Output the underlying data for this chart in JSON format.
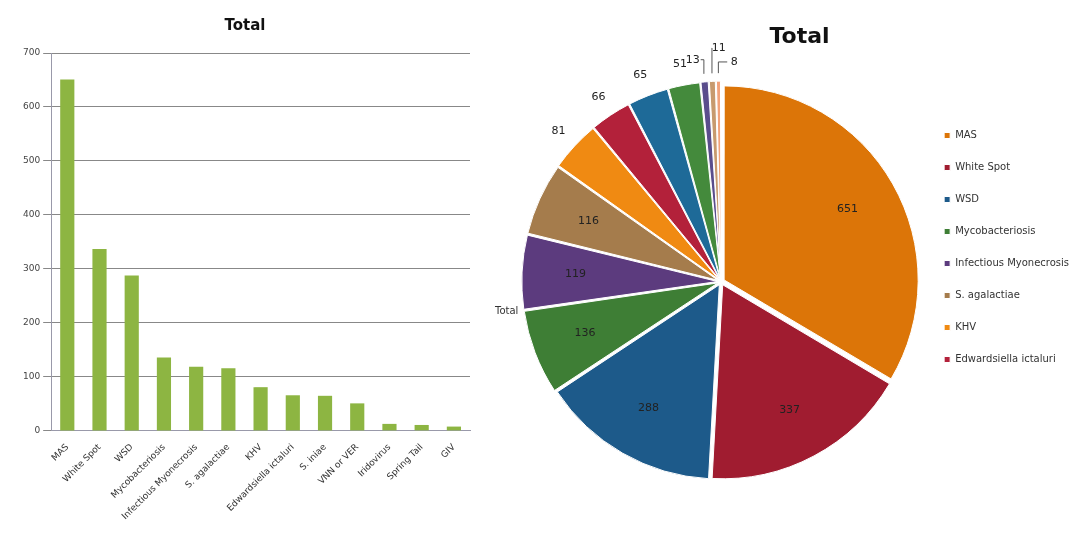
{
  "chart_data": [
    {
      "type": "bar",
      "title": "Total",
      "categories": [
        "MAS",
        "White Spot",
        "WSD",
        "Mycobacteriosis",
        "Infectious Myonecrosis",
        "S. agalactiae",
        "KHV",
        "Edwardsiella ictaluri",
        "S. iniae",
        "VNN or VER",
        "Iridovirus",
        "Spring Tail",
        "GIV"
      ],
      "values": [
        651,
        337,
        288,
        136,
        119,
        116,
        81,
        66,
        65,
        51,
        13,
        11,
        8
      ],
      "color": "#8db542",
      "ylim": [
        0,
        700
      ],
      "yticks": [
        0,
        100,
        200,
        300,
        400,
        500,
        600,
        700
      ],
      "grid": "y",
      "legend": false
    },
    {
      "type": "pie",
      "title": "Total",
      "categories": [
        "MAS",
        "White Spot",
        "WSD",
        "Mycobacteriosis",
        "Infectious Myonecrosis",
        "S. agalactiae",
        "KHV",
        "Edwardsiella ictaluri",
        null,
        null,
        null,
        null,
        null
      ],
      "values": [
        651,
        337,
        288,
        136,
        119,
        116,
        81,
        66,
        65,
        51,
        13,
        11,
        8
      ],
      "colors": [
        "#dc7508",
        "#a01c30",
        "#1d5a8a",
        "#3e7e35",
        "#5c3b7e",
        "#a57c4c",
        "#f08a12",
        "#b3213a",
        "#1e6a98",
        "#448a3c",
        "#5a4d8c",
        "#c79a6e",
        "#f2a27a"
      ],
      "data_labels": true,
      "legend": "right",
      "annotations": [
        "Total"
      ]
    }
  ]
}
